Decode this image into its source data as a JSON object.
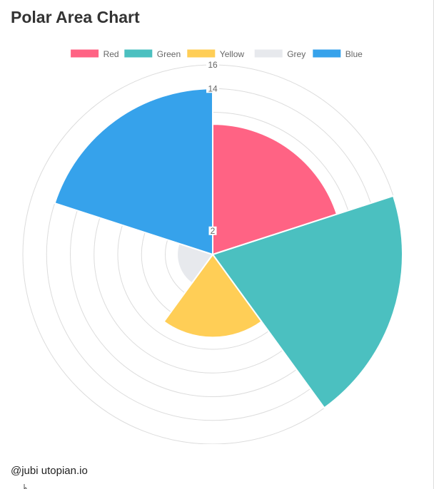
{
  "title": "Polar Area Chart",
  "footer": "@jubi utopian.io",
  "chart_data": {
    "type": "polarArea",
    "title": "",
    "categories": [
      "Red",
      "Green",
      "Yellow",
      "Grey",
      "Blue"
    ],
    "values": [
      11,
      16,
      7,
      3,
      14
    ],
    "colors": [
      "#FF6384",
      "#4BC0C0",
      "#FFCE56",
      "#E7E9ED",
      "#36A2EB"
    ],
    "r_axis": {
      "min": 0,
      "max": 16,
      "tick_step": 2,
      "visible_tick_labels": [
        "16",
        "14",
        "2"
      ]
    },
    "grid": true,
    "legend_position": "top"
  }
}
